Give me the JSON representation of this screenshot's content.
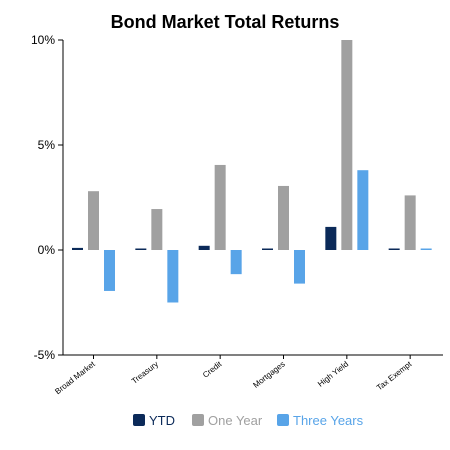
{
  "chart_data": {
    "type": "bar",
    "title": "Bond Market Total Returns",
    "categories": [
      "Broad Market",
      "Treasury",
      "Credit",
      "Mortgages",
      "High Yield",
      "Tax Exempt"
    ],
    "series": [
      {
        "name": "YTD",
        "color": "#0b2a59",
        "values": [
          0.1,
          0.05,
          0.2,
          0.05,
          1.1,
          -0.05
        ]
      },
      {
        "name": "One Year",
        "color": "#a0a0a0",
        "values": [
          2.8,
          1.95,
          4.05,
          3.05,
          10.0,
          2.6
        ]
      },
      {
        "name": "Three Years",
        "color": "#58a4e8",
        "values": [
          -1.95,
          -2.5,
          -1.15,
          -1.6,
          3.8,
          -0.05
        ]
      }
    ],
    "yticks": [
      "10%",
      "5%",
      "0%",
      "-5%"
    ],
    "ytick_values": [
      10,
      5,
      0,
      -5
    ],
    "ylim": [
      -5,
      10
    ],
    "legend_position": "bottom",
    "grid": false
  }
}
